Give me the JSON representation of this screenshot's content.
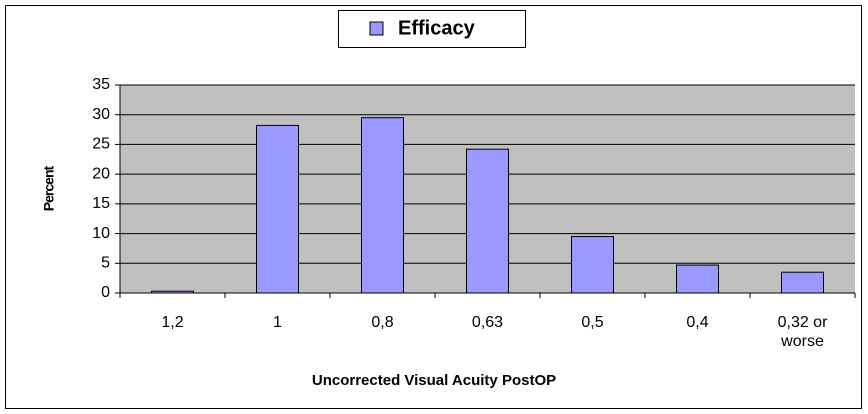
{
  "chart_data": {
    "type": "bar",
    "x_label": "Uncorrected Visual Acuity PostOP",
    "y_label": "Percent",
    "categories": [
      "1,2",
      "1",
      "0,8",
      "0,63",
      "0,5",
      "0,4",
      "0,32 or worse"
    ],
    "series": [
      {
        "name": "Efficacy",
        "color": "#9999ff",
        "values": [
          0.3,
          28.2,
          29.5,
          24.2,
          9.5,
          4.7,
          3.5
        ]
      }
    ],
    "ylim": [
      0,
      35
    ],
    "yticks": [
      0,
      5,
      10,
      15,
      20,
      25,
      30,
      35
    ],
    "grid": true,
    "legend": "top"
  }
}
